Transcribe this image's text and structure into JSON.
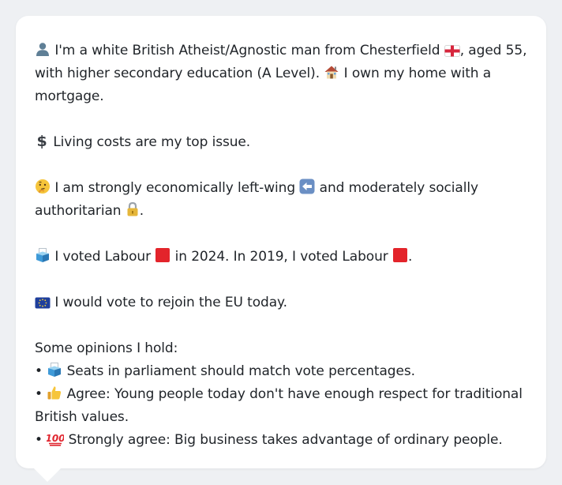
{
  "profile": {
    "intro": {
      "part1": "I'm a white British Atheist/Agnostic man from Chesterfield",
      "part2": ", aged 55, with higher secondary education (A Level).",
      "part3": "I own my home with a mortgage."
    },
    "top_issue": "Living costs are my top issue.",
    "position": {
      "part1": "I am strongly economically left-wing",
      "part2": "and moderately socially authoritarian",
      "part3": "."
    },
    "votes": {
      "part1": "I voted Labour",
      "part2": "in 2024. In 2019, I voted Labour",
      "part3": "."
    },
    "eu": "I would vote to rejoin the EU today.",
    "opinions_heading": "Some opinions I hold:",
    "opinions": [
      {
        "bullet": "•",
        "text": "Seats in parliament should match vote percentages."
      },
      {
        "bullet": "•",
        "text": "Agree: Young people today don't have enough respect for traditional British values."
      },
      {
        "bullet": "•",
        "text": "Strongly agree: Big business takes advantage of ordinary people."
      }
    ]
  },
  "colors": {
    "labour_red": "#e3242b",
    "card_bg": "#ffffff",
    "page_bg": "#eef0f3"
  },
  "icons": [
    "person-icon",
    "england-flag-icon",
    "house-icon",
    "dollar-icon",
    "thinking-face-icon",
    "left-arrow-icon",
    "lock-icon",
    "ballot-box-icon",
    "red-square-icon",
    "eu-flag-icon",
    "thumbs-up-icon",
    "hundred-icon"
  ]
}
